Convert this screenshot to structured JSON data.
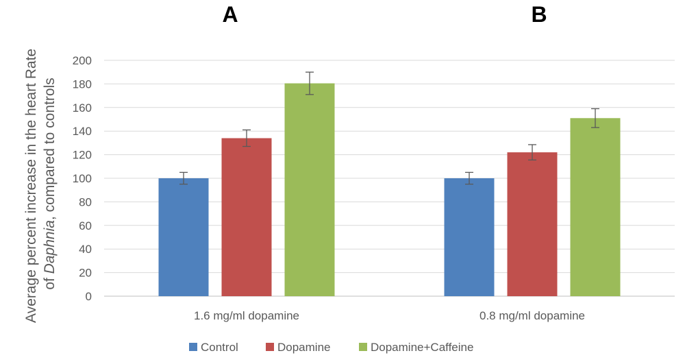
{
  "chart_data": {
    "type": "bar",
    "panel_labels": [
      "A",
      "B"
    ],
    "categories": [
      "1.6 mg/ml dopamine",
      "0.8 mg/ml dopamine"
    ],
    "series": [
      {
        "name": "Control",
        "color": "#4F81BD",
        "values": [
          100,
          100
        ],
        "error": [
          5,
          5
        ]
      },
      {
        "name": "Dopamine",
        "color": "#C0504D",
        "values": [
          134,
          122
        ],
        "error": [
          7,
          6.5
        ]
      },
      {
        "name": "Dopamine+Caffeine",
        "color": "#9BBB59",
        "values": [
          180.5,
          151
        ],
        "error": [
          9.5,
          8
        ]
      }
    ],
    "ylabel_line1": "Average percent increase in the heart Rate",
    "ylabel_line2_prefix": "of ",
    "ylabel_line2_italic": "Daphnia",
    "ylabel_line2_suffix": ", compared to controls",
    "ylim": [
      0,
      200
    ],
    "yticks": [
      0,
      20,
      40,
      60,
      80,
      100,
      120,
      140,
      160,
      180,
      200
    ],
    "grid": true,
    "legend_position": "bottom",
    "colors": {
      "grid": "#D9D9D9",
      "axis": "#BFBFBF",
      "error_bar": "#595959"
    }
  }
}
